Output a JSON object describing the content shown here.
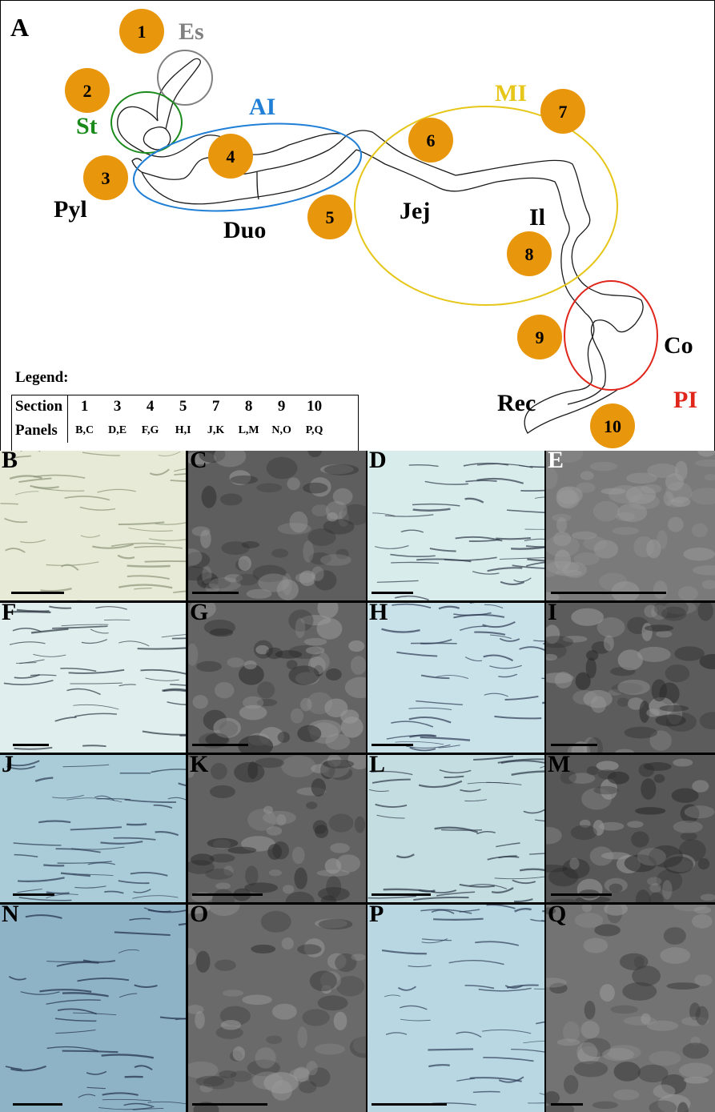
{
  "figure": {
    "panel_a_letter": "A",
    "regions": {
      "es": {
        "label": "Es",
        "color": "#808080"
      },
      "st": {
        "label": "St",
        "color": "#1a8a1a"
      },
      "ai": {
        "label": "AI",
        "color": "#1f7fd6"
      },
      "mi": {
        "label": "MI",
        "color": "#e6c619"
      },
      "pi": {
        "label": "PI",
        "color": "#e0251b"
      }
    },
    "anatomy_labels": {
      "pyl": "Pyl",
      "duo": "Duo",
      "jej": "Jej",
      "il": "Il",
      "co": "Co",
      "rec": "Rec"
    },
    "section_markers": [
      "1",
      "2",
      "3",
      "4",
      "5",
      "6",
      "7",
      "8",
      "9",
      "10"
    ],
    "marker_color": "#e8960c",
    "legend": {
      "title": "Legend:",
      "row_section": "Section",
      "row_panels": "Panels",
      "columns": [
        {
          "section": "1",
          "panels": "B,C"
        },
        {
          "section": "3",
          "panels": "D,E"
        },
        {
          "section": "4",
          "panels": "F,G"
        },
        {
          "section": "5",
          "panels": "H,I"
        },
        {
          "section": "7",
          "panels": "J,K"
        },
        {
          "section": "8",
          "panels": "L,M"
        },
        {
          "section": "9",
          "panels": "N,O"
        },
        {
          "section": "10",
          "panels": "P,Q"
        }
      ]
    },
    "photo_panels": [
      {
        "letter": "B",
        "kind": "light",
        "base": "#e6ead6",
        "line": "#8c9478"
      },
      {
        "letter": "C",
        "kind": "sem",
        "base": "#5e5e5e",
        "line": "#2e2e2e"
      },
      {
        "letter": "D",
        "kind": "light",
        "base": "#d9ecec",
        "line": "#2f3a4a"
      },
      {
        "letter": "E",
        "kind": "sem",
        "base": "#7a7a7a",
        "line": "#9a9a9a"
      },
      {
        "letter": "F",
        "kind": "light",
        "base": "#e0eeee",
        "line": "#2c3440"
      },
      {
        "letter": "G",
        "kind": "sem",
        "base": "#646464",
        "line": "#2a2a2a"
      },
      {
        "letter": "H",
        "kind": "light",
        "base": "#c9e2ea",
        "line": "#2e3b52"
      },
      {
        "letter": "I",
        "kind": "sem",
        "base": "#5c5c5c",
        "line": "#2a2a2a"
      },
      {
        "letter": "J",
        "kind": "light",
        "base": "#a9ccd8",
        "line": "#2c3a52"
      },
      {
        "letter": "K",
        "kind": "sem",
        "base": "#626262",
        "line": "#2c2c2c"
      },
      {
        "letter": "L",
        "kind": "light",
        "base": "#c4dde0",
        "line": "#2c3748"
      },
      {
        "letter": "M",
        "kind": "sem",
        "base": "#575757",
        "line": "#2a2a2a"
      },
      {
        "letter": "N",
        "kind": "light",
        "base": "#8fb3c6",
        "line": "#1f2e4a"
      },
      {
        "letter": "O",
        "kind": "sem",
        "base": "#6a6a6a",
        "line": "#343434"
      },
      {
        "letter": "P",
        "kind": "light",
        "base": "#b8d7e3",
        "line": "#2d3c55"
      },
      {
        "letter": "Q",
        "kind": "sem",
        "base": "#737373",
        "line": "#3c3c3c"
      }
    ]
  }
}
